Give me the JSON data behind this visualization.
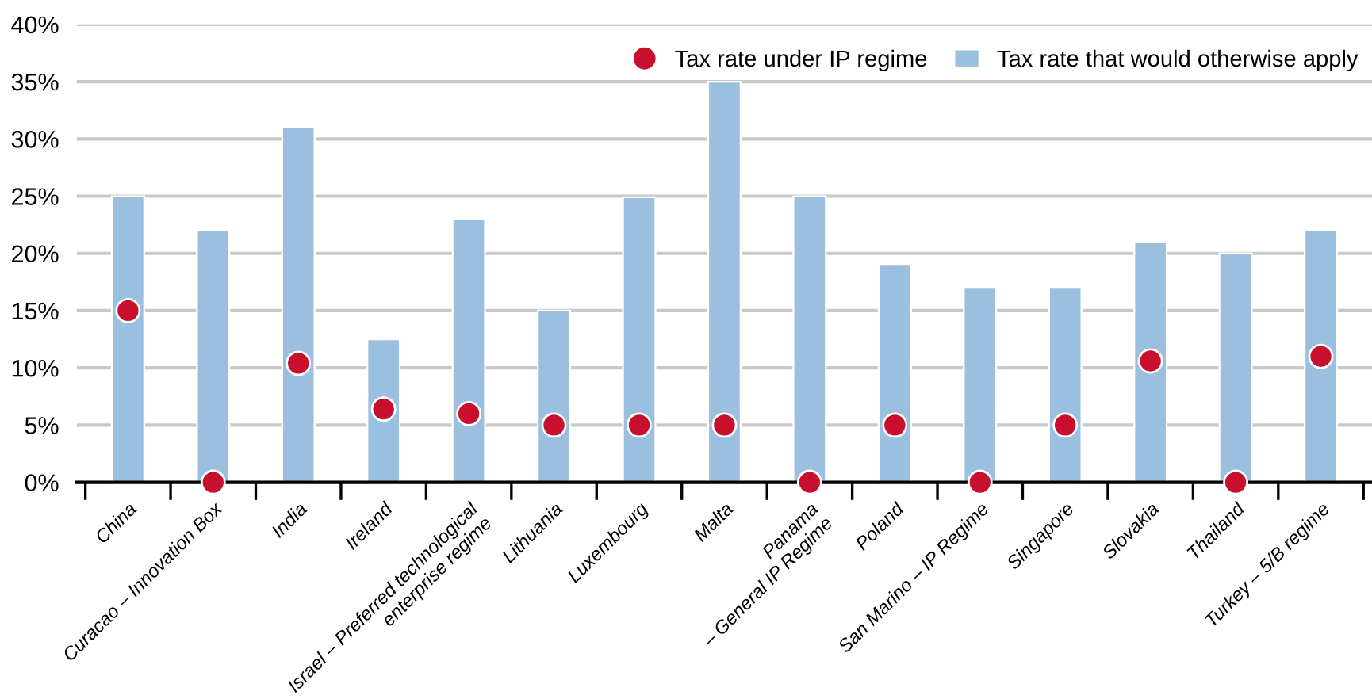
{
  "chart_data": {
    "type": "bar",
    "categories": [
      "China",
      "Curacao – Innovation Box",
      "India",
      "Ireland",
      "Israel – Preferred technological\nenterprise regime",
      "Lithuania",
      "Luxembourg",
      "Malta",
      "Panama\n– General IP Regime",
      "Poland",
      "San Marino – IP Regime",
      "Singapore",
      "Slovakia",
      "Thailand",
      "Turkey – 5/B regime"
    ],
    "series": [
      {
        "name": "Tax rate that would otherwise apply",
        "color": "#9abfdf",
        "values": [
          25,
          22,
          31,
          12.5,
          23,
          15,
          24.9,
          35,
          25,
          19,
          17,
          17,
          21,
          20,
          22
        ]
      },
      {
        "name": "Tax rate under IP regime",
        "type": "scatter",
        "color": "#c8102e",
        "marker": "circle",
        "values": [
          15,
          0,
          10.4,
          6.4,
          6,
          5,
          5,
          5,
          0,
          5,
          0,
          5,
          10.6,
          0,
          11
        ]
      }
    ],
    "ylim": [
      0,
      40
    ],
    "yticks": [
      {
        "value": 0,
        "label": "0%"
      },
      {
        "value": 5,
        "label": "5%"
      },
      {
        "value": 10,
        "label": "10%"
      },
      {
        "value": 15,
        "label": "15%"
      },
      {
        "value": 20,
        "label": "20%"
      },
      {
        "value": 25,
        "label": "25%"
      },
      {
        "value": 30,
        "label": "30%"
      },
      {
        "value": 35,
        "label": "35%"
      },
      {
        "value": 40,
        "label": "40%"
      }
    ],
    "grid": "y",
    "legend": "top right"
  }
}
